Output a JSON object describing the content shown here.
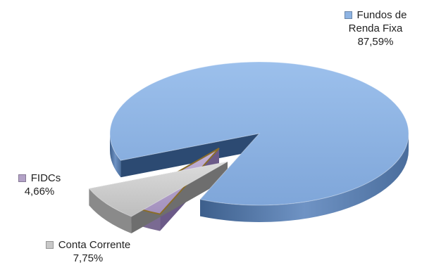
{
  "chart_data": {
    "type": "pie",
    "title": "",
    "slices": [
      {
        "label_lines": [
          "Fundos de",
          "Renda Fixa"
        ],
        "value": 87.59,
        "value_label": "87,59%",
        "color": "#8eb4e3"
      },
      {
        "label_lines": [
          "FIDCs"
        ],
        "value": 4.66,
        "value_label": "4,66%",
        "color": "#b3a2c7"
      },
      {
        "label_lines": [
          "Conta Corrente"
        ],
        "value": 7.75,
        "value_label": "7,75%",
        "color": "#c8c8c8"
      }
    ],
    "legend": "inline labels"
  }
}
